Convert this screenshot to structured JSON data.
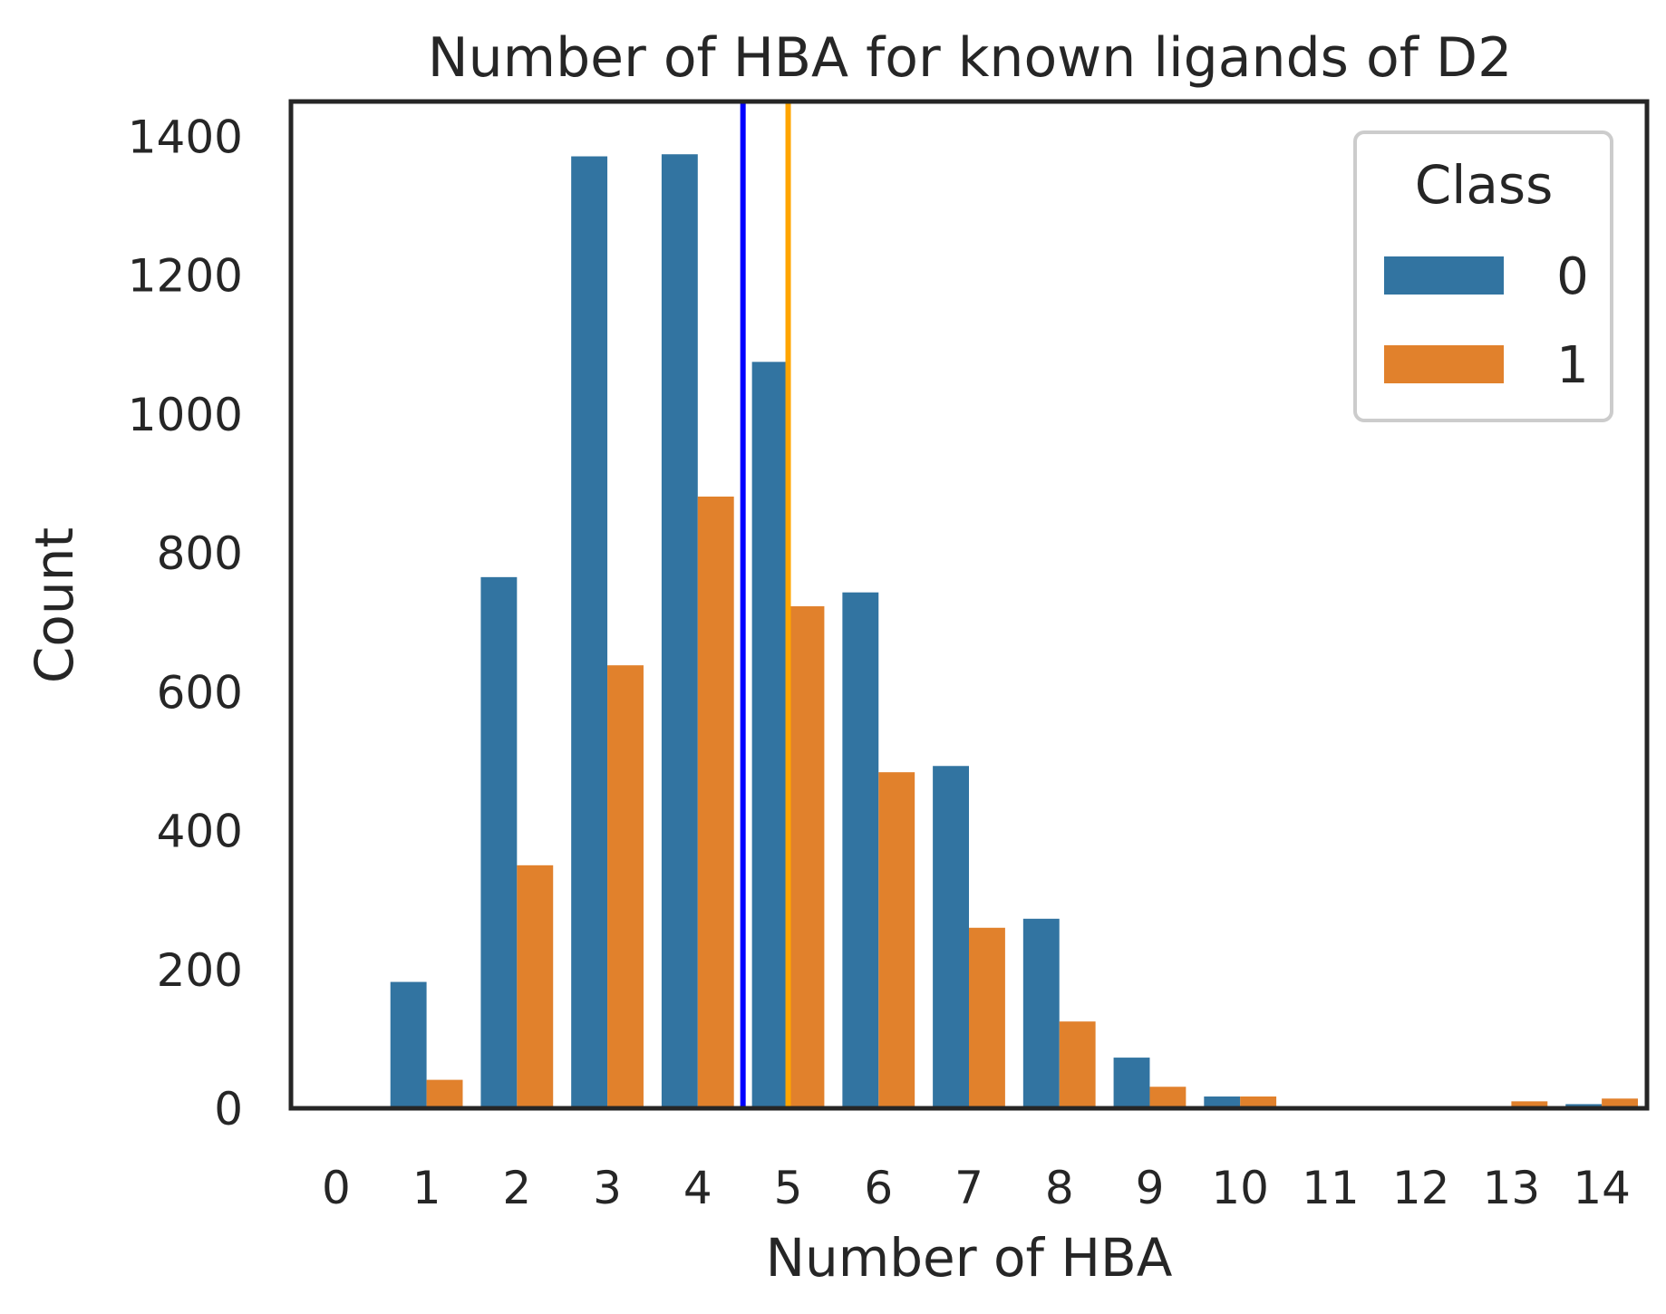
{
  "chart_data": {
    "type": "bar",
    "title": "Number of HBA for known ligands of D2",
    "xlabel": "Number of HBA",
    "ylabel": "Count",
    "categories": [
      "0",
      "1",
      "2",
      "3",
      "4",
      "5",
      "6",
      "7",
      "8",
      "9",
      "10",
      "11",
      "12",
      "13",
      "14"
    ],
    "series": [
      {
        "name": "0",
        "color": "#3274a1",
        "values": [
          0,
          182,
          765,
          1371,
          1374,
          1075,
          743,
          493,
          273,
          73,
          17,
          0,
          0,
          0,
          6
        ]
      },
      {
        "name": "1",
        "color": "#e1812c",
        "values": [
          0,
          41,
          350,
          638,
          881,
          723,
          484,
          260,
          125,
          31,
          17,
          0,
          0,
          10,
          14
        ]
      }
    ],
    "ylim": [
      0,
      1450
    ],
    "yticks": [
      0,
      200,
      400,
      600,
      800,
      1000,
      1200,
      1400
    ],
    "legend": {
      "title": "Class",
      "position": "top-right"
    },
    "reference_lines": [
      {
        "x": 4.5,
        "color": "#0000ff"
      },
      {
        "x": 5.0,
        "color": "#ffa500"
      }
    ],
    "grid": false
  }
}
